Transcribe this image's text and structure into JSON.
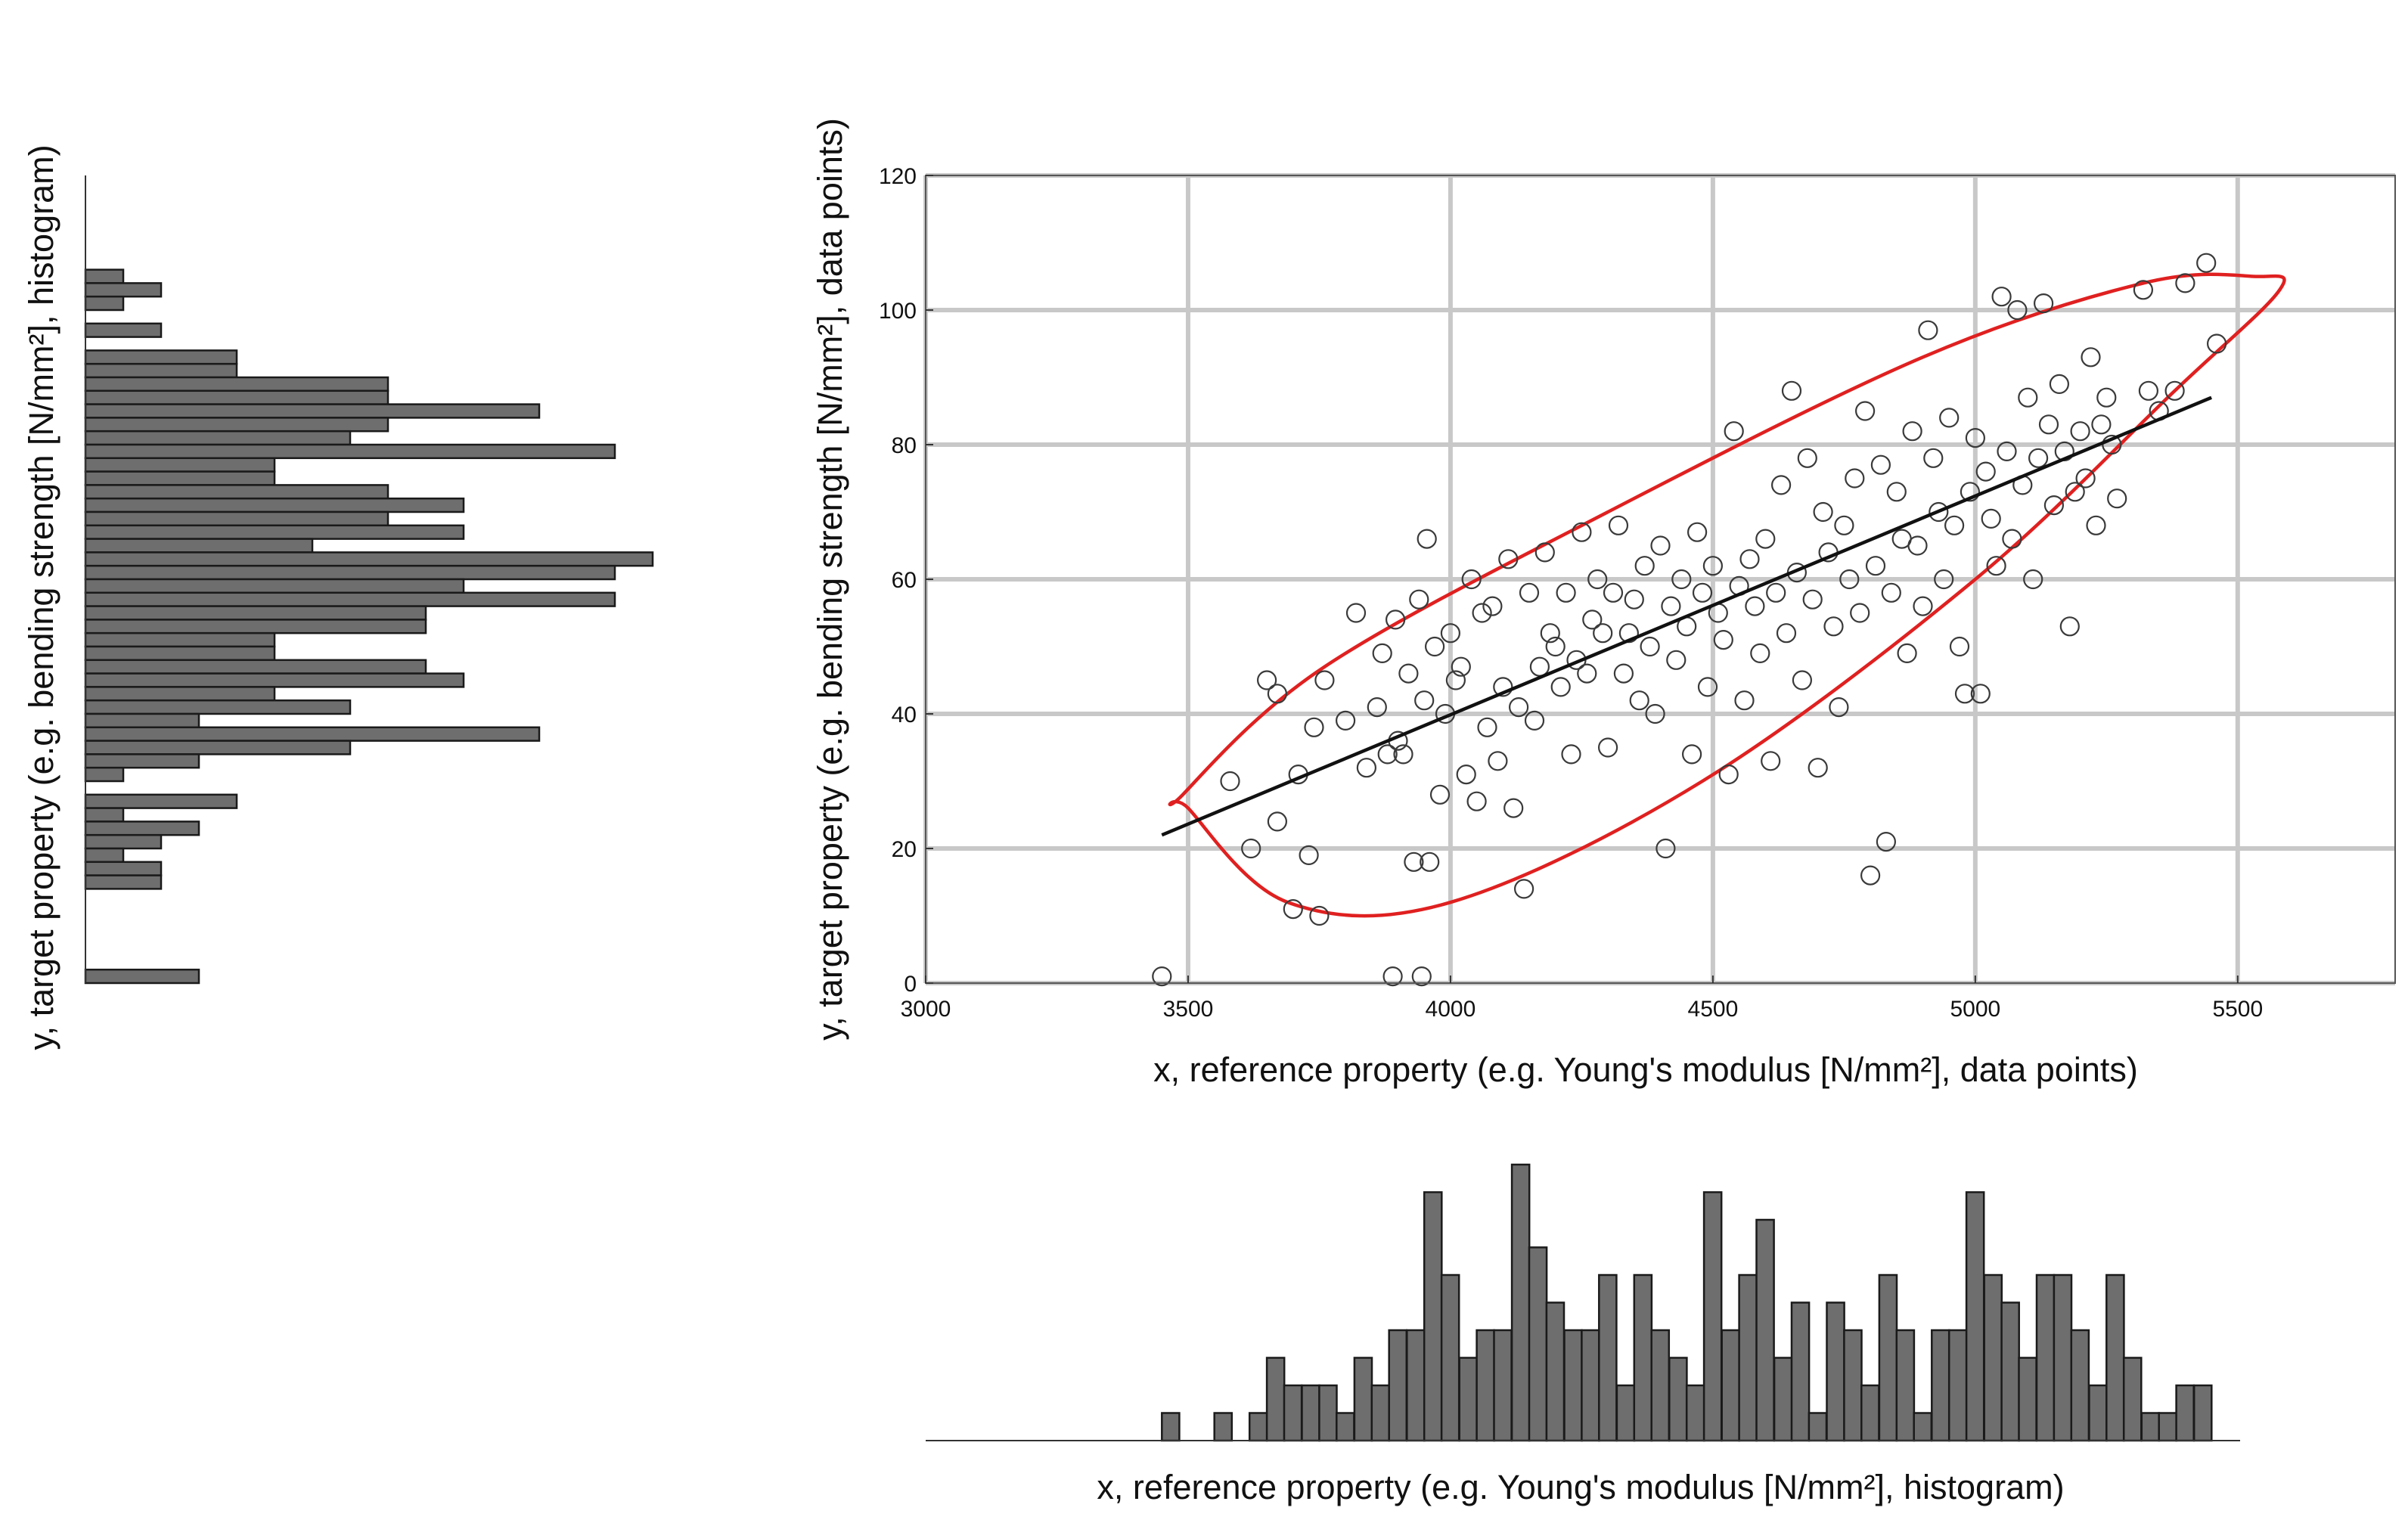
{
  "chart_data": [
    {
      "type": "scatter",
      "name": "scatter",
      "xlabel": "x, reference property (e.g. Young's modulus [N/mm²], data points)",
      "ylabel": "y, target property (e.g. bending strength [N/mm²], data points)",
      "xlim": [
        3000,
        5800
      ],
      "ylim": [
        0,
        120
      ],
      "xticks": [
        3000,
        3500,
        4000,
        4500,
        5000,
        5500
      ],
      "yticks": [
        0,
        20,
        40,
        60,
        80,
        100,
        120
      ],
      "grid": true,
      "points": [
        [
          3450,
          1
        ],
        [
          3580,
          30
        ],
        [
          3620,
          20
        ],
        [
          3650,
          45
        ],
        [
          3670,
          43
        ],
        [
          3670,
          24
        ],
        [
          3700,
          11
        ],
        [
          3710,
          31
        ],
        [
          3730,
          19
        ],
        [
          3740,
          38
        ],
        [
          3750,
          10
        ],
        [
          3760,
          45
        ],
        [
          3800,
          39
        ],
        [
          3820,
          55
        ],
        [
          3840,
          32
        ],
        [
          3860,
          41
        ],
        [
          3870,
          49
        ],
        [
          3880,
          34
        ],
        [
          3890,
          1
        ],
        [
          3895,
          54
        ],
        [
          3900,
          36
        ],
        [
          3910,
          34
        ],
        [
          3920,
          46
        ],
        [
          3930,
          18
        ],
        [
          3940,
          57
        ],
        [
          3945,
          1
        ],
        [
          3950,
          42
        ],
        [
          3955,
          66
        ],
        [
          3960,
          18
        ],
        [
          3970,
          50
        ],
        [
          3980,
          28
        ],
        [
          3990,
          40
        ],
        [
          4000,
          52
        ],
        [
          4010,
          45
        ],
        [
          4020,
          47
        ],
        [
          4030,
          31
        ],
        [
          4040,
          60
        ],
        [
          4050,
          27
        ],
        [
          4060,
          55
        ],
        [
          4070,
          38
        ],
        [
          4080,
          56
        ],
        [
          4090,
          33
        ],
        [
          4100,
          44
        ],
        [
          4110,
          63
        ],
        [
          4120,
          26
        ],
        [
          4130,
          41
        ],
        [
          4140,
          14
        ],
        [
          4150,
          58
        ],
        [
          4160,
          39
        ],
        [
          4170,
          47
        ],
        [
          4180,
          64
        ],
        [
          4190,
          52
        ],
        [
          4200,
          50
        ],
        [
          4210,
          44
        ],
        [
          4220,
          58
        ],
        [
          4230,
          34
        ],
        [
          4240,
          48
        ],
        [
          4250,
          67
        ],
        [
          4260,
          46
        ],
        [
          4270,
          54
        ],
        [
          4280,
          60
        ],
        [
          4290,
          52
        ],
        [
          4300,
          35
        ],
        [
          4310,
          58
        ],
        [
          4320,
          68
        ],
        [
          4330,
          46
        ],
        [
          4340,
          52
        ],
        [
          4350,
          57
        ],
        [
          4360,
          42
        ],
        [
          4370,
          62
        ],
        [
          4380,
          50
        ],
        [
          4390,
          40
        ],
        [
          4400,
          65
        ],
        [
          4410,
          20
        ],
        [
          4420,
          56
        ],
        [
          4430,
          48
        ],
        [
          4440,
          60
        ],
        [
          4450,
          53
        ],
        [
          4460,
          34
        ],
        [
          4470,
          67
        ],
        [
          4480,
          58
        ],
        [
          4490,
          44
        ],
        [
          4500,
          62
        ],
        [
          4510,
          55
        ],
        [
          4520,
          51
        ],
        [
          4530,
          31
        ],
        [
          4540,
          82
        ],
        [
          4550,
          59
        ],
        [
          4560,
          42
        ],
        [
          4570,
          63
        ],
        [
          4580,
          56
        ],
        [
          4590,
          49
        ],
        [
          4600,
          66
        ],
        [
          4610,
          33
        ],
        [
          4620,
          58
        ],
        [
          4630,
          74
        ],
        [
          4640,
          52
        ],
        [
          4650,
          88
        ],
        [
          4660,
          61
        ],
        [
          4670,
          45
        ],
        [
          4680,
          78
        ],
        [
          4690,
          57
        ],
        [
          4700,
          32
        ],
        [
          4710,
          70
        ],
        [
          4720,
          64
        ],
        [
          4730,
          53
        ],
        [
          4740,
          41
        ],
        [
          4750,
          68
        ],
        [
          4760,
          60
        ],
        [
          4770,
          75
        ],
        [
          4780,
          55
        ],
        [
          4790,
          85
        ],
        [
          4800,
          16
        ],
        [
          4810,
          62
        ],
        [
          4820,
          77
        ],
        [
          4830,
          21
        ],
        [
          4840,
          58
        ],
        [
          4850,
          73
        ],
        [
          4860,
          66
        ],
        [
          4870,
          49
        ],
        [
          4880,
          82
        ],
        [
          4890,
          65
        ],
        [
          4900,
          56
        ],
        [
          4910,
          97
        ],
        [
          4920,
          78
        ],
        [
          4930,
          70
        ],
        [
          4940,
          60
        ],
        [
          4950,
          84
        ],
        [
          4960,
          68
        ],
        [
          4970,
          50
        ],
        [
          4980,
          43
        ],
        [
          4990,
          73
        ],
        [
          5000,
          81
        ],
        [
          5010,
          43
        ],
        [
          5020,
          76
        ],
        [
          5030,
          69
        ],
        [
          5040,
          62
        ],
        [
          5050,
          102
        ],
        [
          5060,
          79
        ],
        [
          5070,
          66
        ],
        [
          5080,
          100
        ],
        [
          5090,
          74
        ],
        [
          5100,
          87
        ],
        [
          5110,
          60
        ],
        [
          5120,
          78
        ],
        [
          5130,
          101
        ],
        [
          5140,
          83
        ],
        [
          5150,
          71
        ],
        [
          5160,
          89
        ],
        [
          5170,
          79
        ],
        [
          5180,
          53
        ],
        [
          5190,
          73
        ],
        [
          5200,
          82
        ],
        [
          5210,
          75
        ],
        [
          5220,
          93
        ],
        [
          5230,
          68
        ],
        [
          5240,
          83
        ],
        [
          5250,
          87
        ],
        [
          5260,
          80
        ],
        [
          5270,
          72
        ],
        [
          5320,
          103
        ],
        [
          5330,
          88
        ],
        [
          5350,
          85
        ],
        [
          5380,
          88
        ],
        [
          5400,
          104
        ],
        [
          5440,
          107
        ],
        [
          5460,
          95
        ]
      ],
      "fit_line": {
        "x": [
          3450,
          5450
        ],
        "y": [
          22,
          87
        ],
        "color": "#111111"
      },
      "confidence_ellipse": {
        "points": [
          [
            3500,
            26
          ],
          [
            3690,
            12
          ],
          [
            4000,
            12
          ],
          [
            4480,
            30
          ],
          [
            5000,
            60
          ],
          [
            5380,
            88
          ],
          [
            5580,
            103
          ],
          [
            5530,
            105
          ],
          [
            5320,
            104
          ],
          [
            4900,
            93
          ],
          [
            4300,
            70
          ],
          [
            3760,
            47
          ],
          [
            3490,
            28
          ]
        ],
        "color": "#e02020"
      }
    },
    {
      "type": "bar",
      "name": "x-histogram",
      "orientation": "vertical",
      "xlabel": "x, reference property (e.g. Young's modulus [N/mm²], histogram)",
      "xlim": [
        3000,
        5500
      ],
      "bin_width": 33.33,
      "bins_start": [
        3450,
        3483,
        3517,
        3550,
        3583,
        3617,
        3650,
        3683,
        3717,
        3750,
        3783,
        3817,
        3850,
        3883,
        3917,
        3950,
        3983,
        4017,
        4050,
        4083,
        4117,
        4150,
        4183,
        4217,
        4250,
        4283,
        4317,
        4350,
        4383,
        4417,
        4450,
        4483,
        4517,
        4550,
        4583,
        4617,
        4650,
        4683,
        4717,
        4750,
        4783,
        4817,
        4850,
        4883,
        4917,
        4950,
        4983,
        5017,
        5050,
        5083,
        5117,
        5150,
        5183,
        5217,
        5250,
        5283,
        5317,
        5350,
        5383,
        5417
      ],
      "values": [
        1,
        0,
        0,
        1,
        0,
        1,
        3,
        2,
        2,
        2,
        1,
        3,
        2,
        4,
        4,
        9,
        6,
        3,
        4,
        4,
        10,
        7,
        5,
        4,
        4,
        6,
        2,
        6,
        4,
        3,
        2,
        9,
        4,
        6,
        8,
        3,
        5,
        1,
        5,
        4,
        2,
        6,
        4,
        1,
        4,
        4,
        9,
        6,
        5,
        3,
        6,
        6,
        4,
        2,
        6,
        3,
        1,
        1,
        2,
        2
      ],
      "color": "#6e6e6e"
    },
    {
      "type": "bar",
      "name": "y-histogram",
      "orientation": "horizontal",
      "ylabel": "y, target property (e.g. bending strength [N/mm²], histogram)",
      "ylim": [
        0,
        120
      ],
      "bin_width": 2,
      "bins_start": [
        104,
        102,
        100,
        98,
        96,
        94,
        92,
        90,
        88,
        86,
        84,
        82,
        80,
        78,
        76,
        74,
        72,
        70,
        68,
        66,
        64,
        62,
        60,
        58,
        56,
        54,
        52,
        50,
        48,
        46,
        44,
        42,
        40,
        38,
        36,
        34,
        32,
        30,
        28,
        26,
        24,
        22,
        20,
        18,
        16,
        14,
        12,
        10,
        8,
        6,
        4,
        2,
        0
      ],
      "values": [
        1,
        2,
        1,
        0,
        2,
        0,
        4,
        4,
        8,
        8,
        12,
        8,
        7,
        14,
        5,
        5,
        8,
        10,
        8,
        10,
        6,
        15,
        14,
        10,
        14,
        9,
        9,
        5,
        5,
        9,
        10,
        5,
        7,
        3,
        12,
        7,
        3,
        1,
        0,
        4,
        1,
        3,
        2,
        1,
        2,
        2,
        0,
        0,
        0,
        0,
        0,
        0,
        3
      ],
      "color": "#6e6e6e"
    }
  ]
}
